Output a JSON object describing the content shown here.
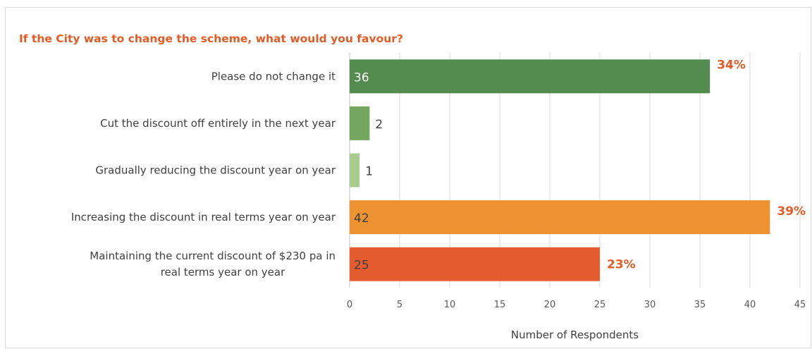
{
  "chart_data": {
    "type": "bar",
    "orientation": "horizontal",
    "title": "If the City was to change the scheme, what would you favour?",
    "xlabel": "Number of Respondents",
    "ylabel": "",
    "xlim": [
      0,
      45
    ],
    "ticks": [
      "0",
      "5",
      "10",
      "15",
      "20",
      "25",
      "30",
      "35",
      "40",
      "45"
    ],
    "grid": true,
    "categories": [
      [
        "Please do not change it"
      ],
      [
        "Cut the discount off entirely in the next year"
      ],
      [
        "Gradually reducing the discount year on year"
      ],
      [
        "Increasing the discount in real terms year on year"
      ],
      [
        "Maintaining the current discount of $230 pa in",
        "real terms year on year"
      ]
    ],
    "values": [
      36,
      2,
      1,
      42,
      25
    ],
    "value_labels": [
      "36",
      "2",
      "1",
      "42",
      "25"
    ],
    "percent_labels": [
      "34%",
      "",
      "",
      "39%",
      "23%"
    ],
    "colors": [
      "#548b4f",
      "#75a65f",
      "#a9cc8e",
      "#ec9230",
      "#e45b2d"
    ],
    "value_label_colors": [
      "#ffffff",
      "#404040",
      "#404040",
      "#404040",
      "#404040"
    ],
    "title_color": "#e45b25"
  }
}
